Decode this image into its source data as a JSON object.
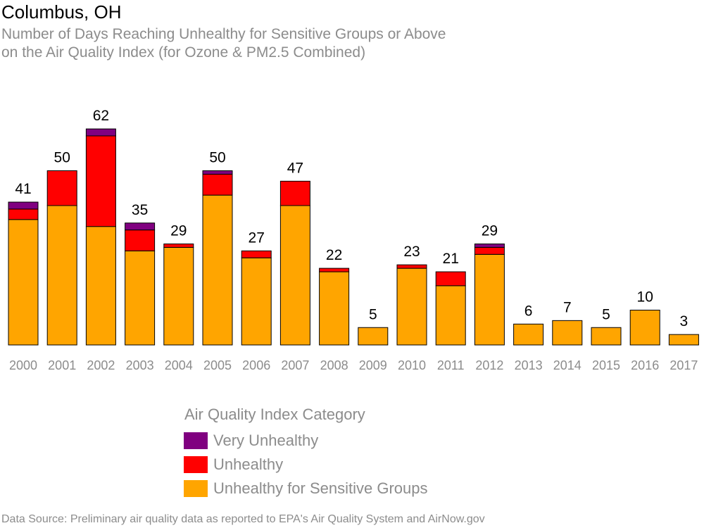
{
  "header": {
    "title": "Columbus, OH",
    "subtitle_line1": "Number of Days Reaching Unhealthy for Sensitive Groups or Above",
    "subtitle_line2": "on the Air Quality Index (for Ozone & PM2.5 Combined)"
  },
  "legend": {
    "title": "Air Quality Index Category",
    "items": [
      {
        "label": "Very Unhealthy",
        "color": "#800080"
      },
      {
        "label": "Unhealthy",
        "color": "#ff0000"
      },
      {
        "label": "Unhealthy for Sensitive Groups",
        "color": "#ffa500"
      }
    ]
  },
  "source": "Data Source: Preliminary air quality data as reported to EPA's Air Quality System and AirNow.gov",
  "chart_data": {
    "type": "bar",
    "stacked": true,
    "categories": [
      "2000",
      "2001",
      "2002",
      "2003",
      "2004",
      "2005",
      "2006",
      "2007",
      "2008",
      "2009",
      "2010",
      "2011",
      "2012",
      "2013",
      "2014",
      "2015",
      "2016",
      "2017"
    ],
    "series": [
      {
        "name": "Unhealthy for Sensitive Groups",
        "color": "#ffa500",
        "values": [
          36,
          40,
          34,
          27,
          28,
          43,
          25,
          40,
          21,
          5,
          22,
          17,
          26,
          6,
          7,
          5,
          10,
          3
        ]
      },
      {
        "name": "Unhealthy",
        "color": "#ff0000",
        "values": [
          3,
          10,
          26,
          6,
          1,
          6,
          2,
          7,
          1,
          0,
          1,
          4,
          2,
          0,
          0,
          0,
          0,
          0
        ]
      },
      {
        "name": "Very Unhealthy",
        "color": "#800080",
        "values": [
          2,
          0,
          2,
          2,
          0,
          1,
          0,
          0,
          0,
          0,
          0,
          0,
          1,
          0,
          0,
          0,
          0,
          0
        ]
      }
    ],
    "totals": [
      41,
      50,
      62,
      35,
      29,
      50,
      27,
      47,
      22,
      5,
      23,
      21,
      29,
      6,
      7,
      5,
      10,
      3
    ],
    "ylim": [
      0,
      62
    ],
    "grid": false
  }
}
